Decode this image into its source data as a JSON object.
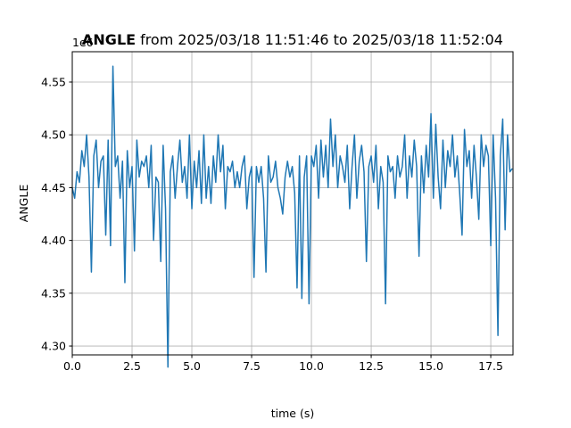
{
  "chart_data": {
    "type": "line",
    "title_name": "ANGLE",
    "title_range": "from 2025/03/18 11:51:46 to 2025/03/18 11:52:04",
    "xlabel": "time (s)",
    "ylabel": "ANGLE",
    "y_offset_label": "1e6",
    "xlim": [
      0,
      18.43
    ],
    "ylim": [
      4.2916,
      4.5787
    ],
    "xticks": [
      {
        "value": 0,
        "label": "0.0"
      },
      2.5,
      {
        "value": 5,
        "label": "5.0"
      },
      7.5,
      {
        "value": 10,
        "label": "10.0"
      },
      12.5,
      {
        "value": 15,
        "label": "15.0"
      },
      17.5
    ],
    "yticks": [
      {
        "value": 4.3,
        "label": "4.30"
      },
      4.35,
      {
        "value": 4.4,
        "label": "4.40"
      },
      4.45,
      {
        "value": 4.5,
        "label": "4.50"
      },
      4.55
    ],
    "grid": true,
    "x": [
      0,
      0.1,
      0.2,
      0.3,
      0.4,
      0.5,
      0.6,
      0.7,
      0.8,
      0.9,
      1,
      1.1,
      1.2,
      1.3,
      1.4,
      1.5,
      1.6,
      1.7,
      1.8,
      1.9,
      2,
      2.1,
      2.2,
      2.3,
      2.4,
      2.5,
      2.6,
      2.7,
      2.8,
      2.9,
      3,
      3.1,
      3.2,
      3.3,
      3.4,
      3.5,
      3.6,
      3.7,
      3.8,
      3.9,
      4,
      4.1,
      4.2,
      4.3,
      4.4,
      4.5,
      4.6,
      4.7,
      4.8,
      4.9,
      5,
      5.1,
      5.2,
      5.3,
      5.4,
      5.5,
      5.6,
      5.7,
      5.8,
      5.9,
      6,
      6.1,
      6.2,
      6.3,
      6.4,
      6.5,
      6.6,
      6.7,
      6.8,
      6.9,
      7,
      7.1,
      7.2,
      7.3,
      7.4,
      7.5,
      7.6,
      7.7,
      7.8,
      7.9,
      8,
      8.1,
      8.2,
      8.3,
      8.4,
      8.5,
      8.6,
      8.7,
      8.8,
      8.9,
      9,
      9.1,
      9.2,
      9.3,
      9.4,
      9.5,
      9.6,
      9.7,
      9.8,
      9.9,
      10,
      10.1,
      10.2,
      10.3,
      10.4,
      10.5,
      10.6,
      10.7,
      10.8,
      10.9,
      11,
      11.1,
      11.2,
      11.3,
      11.4,
      11.5,
      11.6,
      11.7,
      11.8,
      11.9,
      12,
      12.1,
      12.2,
      12.3,
      12.4,
      12.5,
      12.6,
      12.7,
      12.8,
      12.9,
      13,
      13.1,
      13.2,
      13.3,
      13.4,
      13.5,
      13.6,
      13.7,
      13.8,
      13.9,
      14,
      14.1,
      14.2,
      14.3,
      14.4,
      14.5,
      14.6,
      14.7,
      14.8,
      14.9,
      15,
      15.1,
      15.2,
      15.3,
      15.4,
      15.5,
      15.6,
      15.7,
      15.8,
      15.9,
      16,
      16.1,
      16.2,
      16.3,
      16.4,
      16.5,
      16.6,
      16.7,
      16.8,
      16.9,
      17,
      17.1,
      17.2,
      17.3,
      17.4,
      17.5,
      17.6,
      17.7,
      17.8,
      17.9,
      18,
      18.1,
      18.2,
      18.3,
      18.4
    ],
    "series": [
      {
        "color": "#1f77b4",
        "values": [
          4.45,
          4.44,
          4.465,
          4.455,
          4.485,
          4.47,
          4.5,
          4.46,
          4.37,
          4.48,
          4.495,
          4.45,
          4.475,
          4.48,
          4.405,
          4.495,
          4.395,
          4.565,
          4.47,
          4.48,
          4.44,
          4.475,
          4.36,
          4.485,
          4.45,
          4.47,
          4.39,
          4.495,
          4.46,
          4.475,
          4.47,
          4.48,
          4.45,
          4.49,
          4.4,
          4.46,
          4.455,
          4.38,
          4.49,
          4.43,
          4.28,
          4.465,
          4.48,
          4.44,
          4.47,
          4.495,
          4.455,
          4.47,
          4.44,
          4.5,
          4.43,
          4.475,
          4.45,
          4.485,
          4.435,
          4.5,
          4.44,
          4.47,
          4.435,
          4.48,
          4.455,
          4.5,
          4.465,
          4.49,
          4.43,
          4.47,
          4.465,
          4.475,
          4.45,
          4.465,
          4.45,
          4.47,
          4.48,
          4.43,
          4.46,
          4.47,
          4.365,
          4.47,
          4.455,
          4.47,
          4.44,
          4.37,
          4.48,
          4.455,
          4.46,
          4.475,
          4.45,
          4.44,
          4.425,
          4.46,
          4.475,
          4.46,
          4.47,
          4.445,
          4.355,
          4.48,
          4.345,
          4.46,
          4.48,
          4.34,
          4.48,
          4.47,
          4.49,
          4.44,
          4.495,
          4.46,
          4.49,
          4.45,
          4.515,
          4.47,
          4.5,
          4.45,
          4.48,
          4.47,
          4.455,
          4.49,
          4.43,
          4.47,
          4.5,
          4.44,
          4.475,
          4.49,
          4.465,
          4.38,
          4.47,
          4.48,
          4.455,
          4.49,
          4.43,
          4.47,
          4.455,
          4.34,
          4.48,
          4.465,
          4.47,
          4.44,
          4.48,
          4.46,
          4.47,
          4.5,
          4.44,
          4.48,
          4.46,
          4.495,
          4.47,
          4.385,
          4.48,
          4.445,
          4.49,
          4.46,
          4.52,
          4.44,
          4.51,
          4.46,
          4.43,
          4.495,
          4.45,
          4.485,
          4.47,
          4.5,
          4.46,
          4.48,
          4.445,
          4.405,
          4.505,
          4.47,
          4.485,
          4.44,
          4.49,
          4.46,
          4.42,
          4.5,
          4.47,
          4.49,
          4.48,
          4.395,
          4.5,
          4.44,
          4.31,
          4.48,
          4.515,
          4.41,
          4.5,
          4.465,
          4.468
        ]
      }
    ]
  }
}
